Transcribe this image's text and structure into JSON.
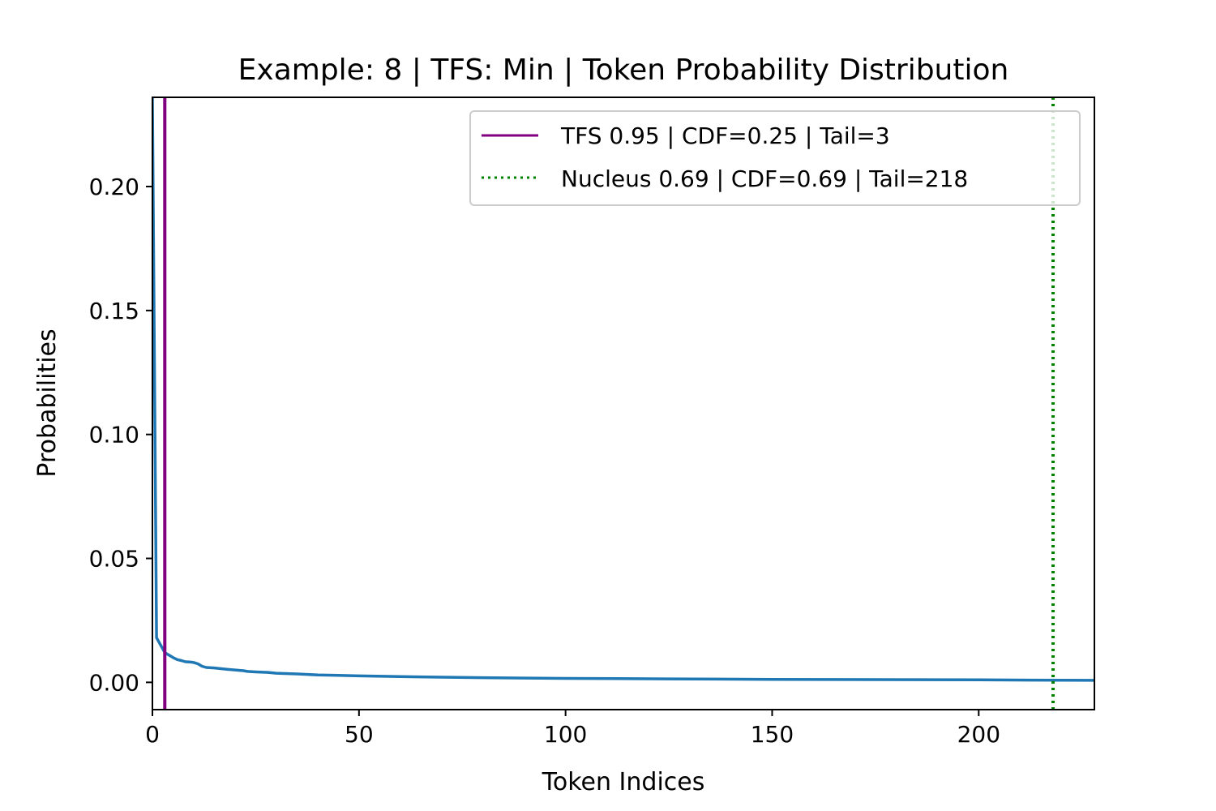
{
  "chart_data": {
    "type": "line",
    "title": "Example: 8 | TFS: Min | Token Probability Distribution",
    "xlabel": "Token Indices",
    "ylabel": "Probabilities",
    "xlim": [
      0,
      228
    ],
    "ylim": [
      -0.011,
      0.236
    ],
    "xticks": [
      0,
      50,
      100,
      150,
      200
    ],
    "xtick_labels": [
      "0",
      "50",
      "100",
      "150",
      "200"
    ],
    "yticks": [
      0.0,
      0.05,
      0.1,
      0.15,
      0.2
    ],
    "ytick_labels": [
      "0.00",
      "0.05",
      "0.10",
      "0.15",
      "0.20"
    ],
    "grid": false,
    "legend_position": "top-right",
    "series": [
      {
        "color": "#1f77b4",
        "x": [
          0,
          1,
          2,
          3,
          4,
          5,
          6,
          7,
          8,
          9,
          10,
          11,
          12,
          13,
          15,
          18,
          20,
          22,
          23,
          25,
          28,
          30,
          35,
          40,
          45,
          50,
          60,
          70,
          80,
          100,
          125,
          150,
          175,
          200,
          228
        ],
        "y": [
          0.236,
          0.018,
          0.015,
          0.012,
          0.011,
          0.01,
          0.0092,
          0.0088,
          0.0083,
          0.0082,
          0.008,
          0.0075,
          0.0065,
          0.006,
          0.0058,
          0.0053,
          0.005,
          0.0047,
          0.0044,
          0.0042,
          0.004,
          0.0037,
          0.0034,
          0.003,
          0.0028,
          0.0026,
          0.0023,
          0.0021,
          0.0019,
          0.0016,
          0.0014,
          0.0012,
          0.0011,
          0.001,
          0.0008
        ]
      }
    ],
    "vlines": [
      {
        "label": "TFS 0.95 | CDF=0.25 | Tail=3",
        "x": 3,
        "color": "#800080",
        "style": "solid"
      },
      {
        "label": "Nucleus 0.69 | CDF=0.69 | Tail=218",
        "x": 218,
        "color": "#008000",
        "style": "dotted"
      }
    ]
  }
}
